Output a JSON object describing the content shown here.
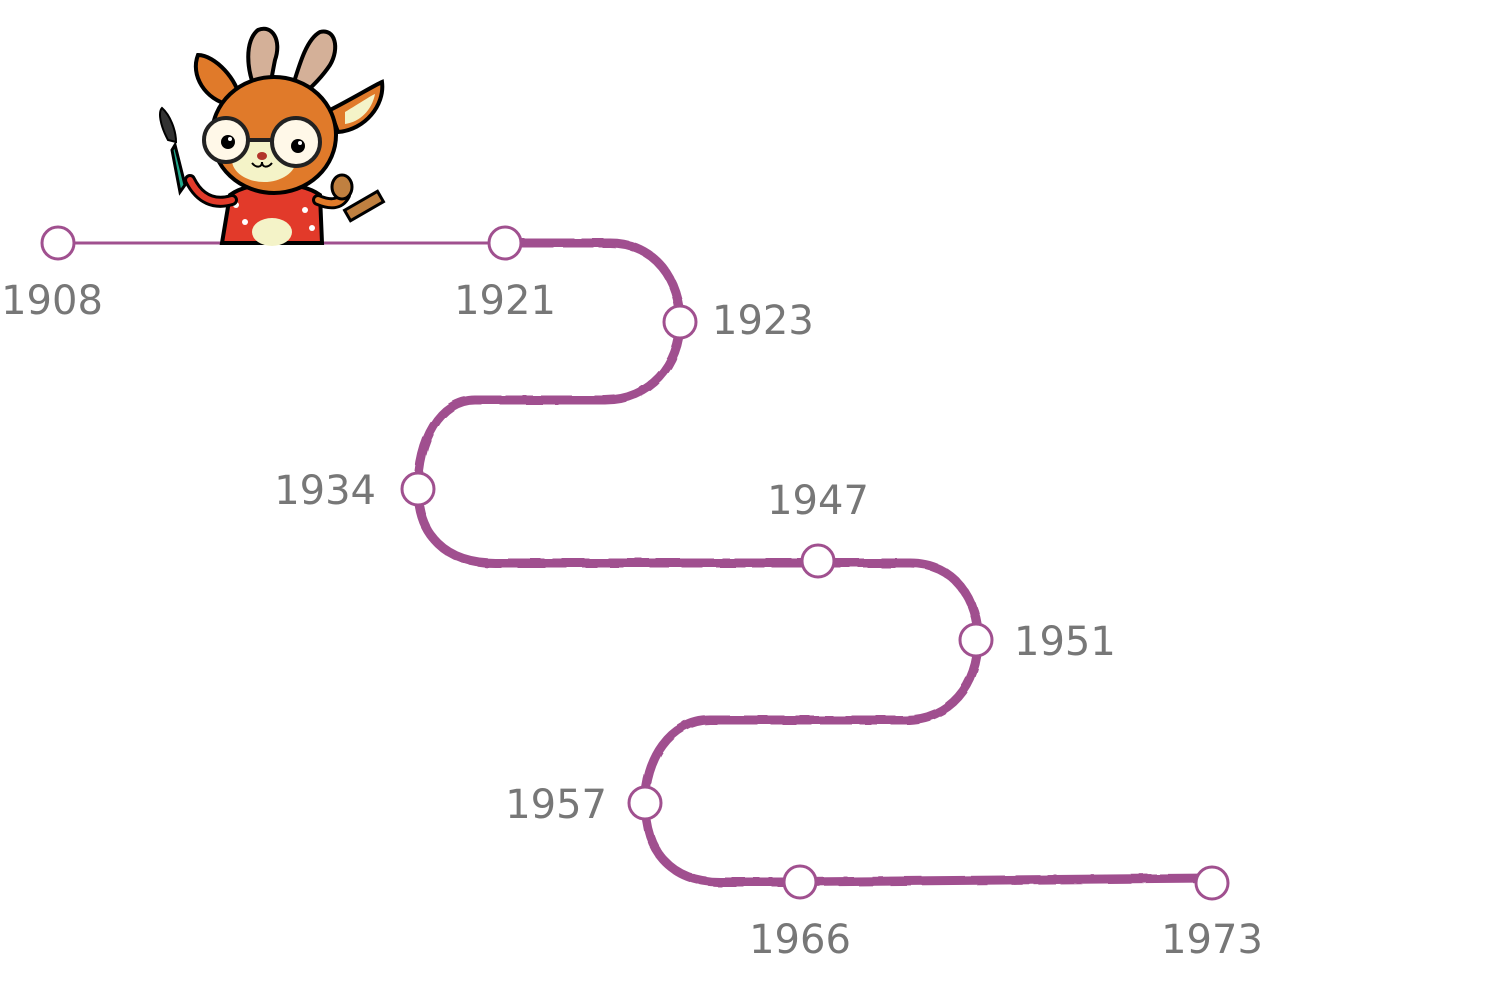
{
  "timeline": {
    "track_color": "#a0508f",
    "node_fill": "#ffffff",
    "label_color": "#777777",
    "milestones": [
      {
        "year": "1908"
      },
      {
        "year": "1921"
      },
      {
        "year": "1923"
      },
      {
        "year": "1934"
      },
      {
        "year": "1947"
      },
      {
        "year": "1951"
      },
      {
        "year": "1957"
      },
      {
        "year": "1966"
      },
      {
        "year": "1973"
      }
    ]
  },
  "mascot": {
    "description_name": "deer-artist-mascot",
    "colors": {
      "fur": "#e07a2a",
      "antler": "#d4b098",
      "shirt": "#e23a2a",
      "brush_handle": "#1fa88a"
    }
  }
}
